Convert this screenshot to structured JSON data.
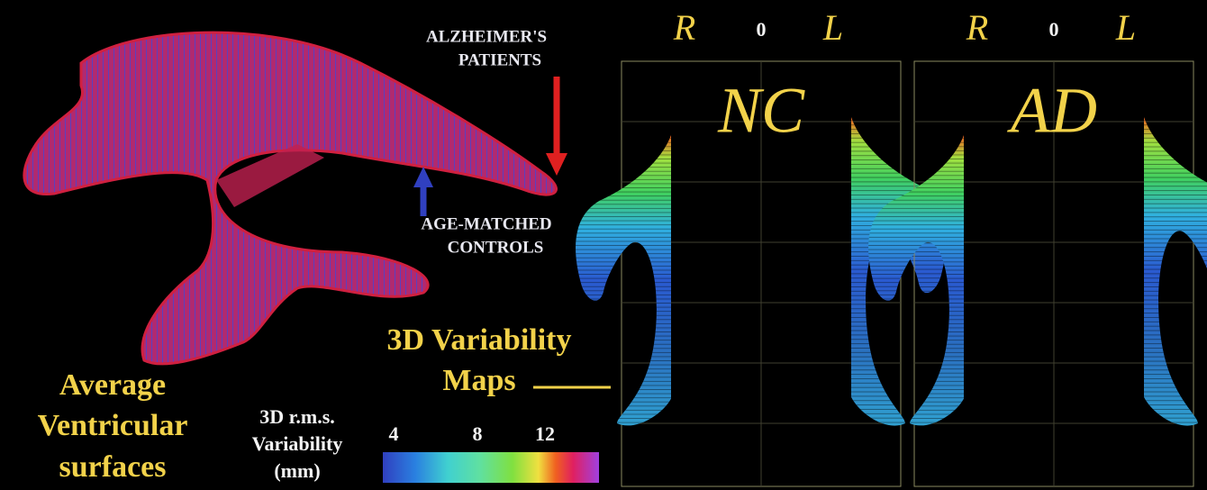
{
  "figure": {
    "arrow_labels": {
      "patients": [
        "ALZHEIMER'S",
        "PATIENTS"
      ],
      "controls": [
        "AGE-MATCHED",
        "CONTROLS"
      ]
    },
    "maps_label": [
      "3D Variability",
      "Maps"
    ],
    "surfaces_label": [
      "Average",
      "Ventricular",
      "surfaces"
    ],
    "colorbar": {
      "title": [
        "3D r.m.s.",
        "Variability",
        "(mm)"
      ],
      "tick_labels": [
        "4",
        "8",
        "12"
      ]
    },
    "panels": [
      {
        "name": "NC",
        "orientation": [
          "R",
          "0",
          "L"
        ]
      },
      {
        "name": "AD",
        "orientation": [
          "R",
          "0",
          "L"
        ]
      }
    ]
  }
}
